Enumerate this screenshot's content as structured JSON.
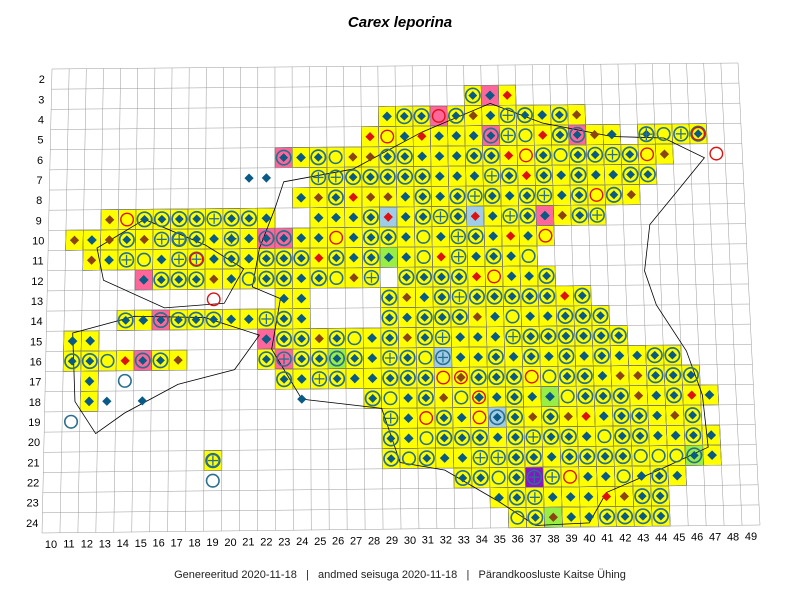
{
  "title": "Carex leporina",
  "footer": {
    "generated": "Genereeritud 2020-11-18",
    "data_state": "andmed seisuga 2020-11-18",
    "organization": "Pärandkoosluste Kaitse Ühing",
    "separator": "|"
  },
  "grid": {
    "col_min": 10,
    "col_max": 49,
    "row_min": 2,
    "row_max": 24
  },
  "colors": {
    "occupied_cell": "#ffff00",
    "pink_cell": "#ff6699",
    "lightblue_cell": "#9fcde8",
    "green_cell": "#99ee44",
    "purple_cell": "#8a14c8",
    "grid_line": "#999999",
    "coast_line": "#000000",
    "marker_teal": "#0a5a86",
    "marker_brown": "#8b4513",
    "marker_red": "#dd1111",
    "marker_ring": "#2a6f8e"
  },
  "legend_symbol_names": [
    "filled-diamond",
    "diamond-in-circle",
    "cross-in-circle",
    "open-circle",
    "cross"
  ]
}
